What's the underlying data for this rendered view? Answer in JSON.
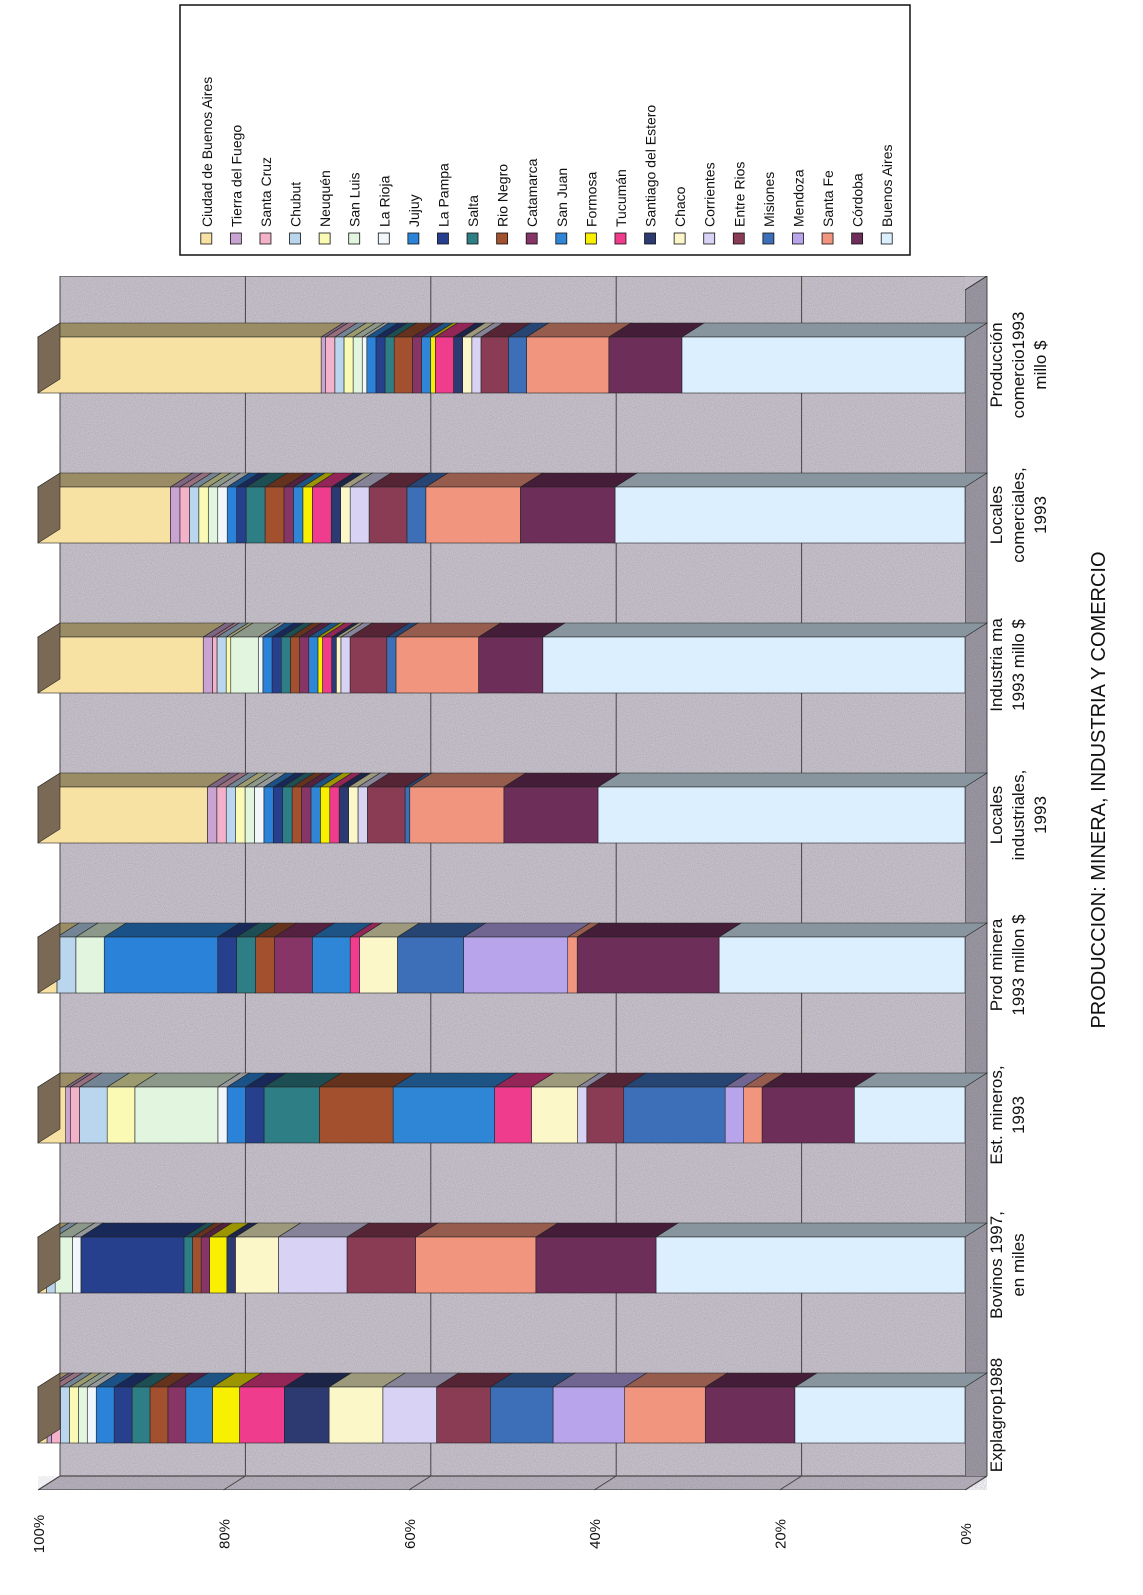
{
  "chart_data": {
    "type": "bar",
    "stacked": true,
    "percent_stacked": true,
    "orientation": "rotated-90",
    "title": "PRODUCCION: MINERA, INDUSTRIA Y COMERCIO",
    "ylabel": "",
    "xlabel": "",
    "ylim": [
      0,
      100
    ],
    "y_ticks": [
      "0%",
      "20%",
      "40%",
      "60%",
      "80%",
      "100%"
    ],
    "grid": true,
    "legend_position": "right",
    "categories": [
      "Explagrop1988",
      "Bovinos 1997, en miles",
      "Est. mineros, 1993",
      "Prod minera 1993 millon $",
      "Locales industriales, 1993",
      "Industria ma 1993 millo $",
      "Locales comerciales, 1993",
      "Producción comercio1993 millo $"
    ],
    "series": [
      {
        "name": "Buenos Aires",
        "color": "#dcefff",
        "values": [
          19,
          36,
          12,
          26,
          39,
          46,
          37,
          31
        ]
      },
      {
        "name": "Córdoba",
        "color": "#6e2e5a",
        "values": [
          10,
          14,
          10,
          15,
          10,
          7,
          10,
          8
        ]
      },
      {
        "name": "Santa Fe",
        "color": "#f2957e",
        "values": [
          9,
          14,
          2,
          1,
          10,
          9,
          10,
          9
        ]
      },
      {
        "name": "Mendoza",
        "color": "#b7a4ea",
        "values": [
          8,
          0,
          2,
          11,
          0,
          0,
          0,
          0
        ]
      },
      {
        "name": "Misiones",
        "color": "#3d6fb8",
        "values": [
          7,
          0,
          11,
          7,
          0.5,
          1,
          2,
          2
        ]
      },
      {
        "name": "Entre Rios",
        "color": "#8a3c55",
        "values": [
          6,
          8,
          4,
          0,
          4,
          4,
          4,
          3
        ]
      },
      {
        "name": "Corrientes",
        "color": "#d8d2f4",
        "values": [
          6,
          8,
          1,
          0,
          1,
          1,
          2,
          1
        ]
      },
      {
        "name": "Chaco",
        "color": "#fbf7c8",
        "values": [
          6,
          5,
          5,
          4,
          1,
          0.5,
          1,
          1
        ]
      },
      {
        "name": "Santiago del Estero",
        "color": "#2d3a72",
        "values": [
          5,
          1,
          0,
          0,
          1,
          0.5,
          1,
          1
        ]
      },
      {
        "name": "Tucumán",
        "color": "#ef3c8c",
        "values": [
          5,
          0,
          4,
          1,
          1,
          1,
          2,
          2
        ]
      },
      {
        "name": "Formosa",
        "color": "#f8f000",
        "values": [
          3,
          2,
          0,
          0,
          1,
          0.5,
          1,
          0.5
        ]
      },
      {
        "name": "San Juan",
        "color": "#2f86d6",
        "values": [
          3,
          0,
          11,
          4,
          1,
          1,
          1,
          1
        ]
      },
      {
        "name": "Catamarca",
        "color": "#873567",
        "values": [
          2,
          1,
          0,
          4,
          1,
          1,
          1,
          1
        ]
      },
      {
        "name": "Rio Negro",
        "color": "#a3502e",
        "values": [
          2,
          1,
          8,
          2,
          1,
          1,
          2,
          2
        ]
      },
      {
        "name": "Salta",
        "color": "#2e7e86",
        "values": [
          2,
          1,
          6,
          2,
          1,
          1,
          2,
          1
        ]
      },
      {
        "name": "La Pampa",
        "color": "#27408e",
        "values": [
          2,
          12,
          2,
          2,
          1,
          1,
          1,
          1
        ]
      },
      {
        "name": "Jujuy",
        "color": "#2a83d8",
        "values": [
          2,
          0,
          2,
          12,
          1,
          1,
          1,
          1
        ]
      },
      {
        "name": "La Rioja",
        "color": "#f2f7fb",
        "values": [
          1,
          1,
          1,
          0,
          1,
          0.5,
          1,
          0.5
        ]
      },
      {
        "name": "San Luis",
        "color": "#e2f5df",
        "values": [
          1,
          2,
          9,
          3,
          1,
          3,
          1,
          1
        ]
      },
      {
        "name": "Neuquén",
        "color": "#fbfab5",
        "values": [
          1,
          0,
          3,
          0,
          1,
          0.5,
          1,
          1
        ]
      },
      {
        "name": "Chubut",
        "color": "#b9d6ee",
        "values": [
          1,
          1,
          3,
          2,
          1,
          1,
          1,
          1
        ]
      },
      {
        "name": "Santa Cruz",
        "color": "#f3b2c9",
        "values": [
          1,
          0,
          1,
          0,
          1,
          0.5,
          1,
          1
        ]
      },
      {
        "name": "Tierra del Fuego",
        "color": "#c9a3d2",
        "values": [
          0.5,
          0,
          0.5,
          0,
          1,
          1,
          1,
          0.5
        ]
      },
      {
        "name": "Ciudad de Buenos Aires",
        "color": "#f8e2a3",
        "values": [
          1,
          1,
          3,
          2,
          18,
          18,
          14,
          31
        ]
      }
    ]
  }
}
